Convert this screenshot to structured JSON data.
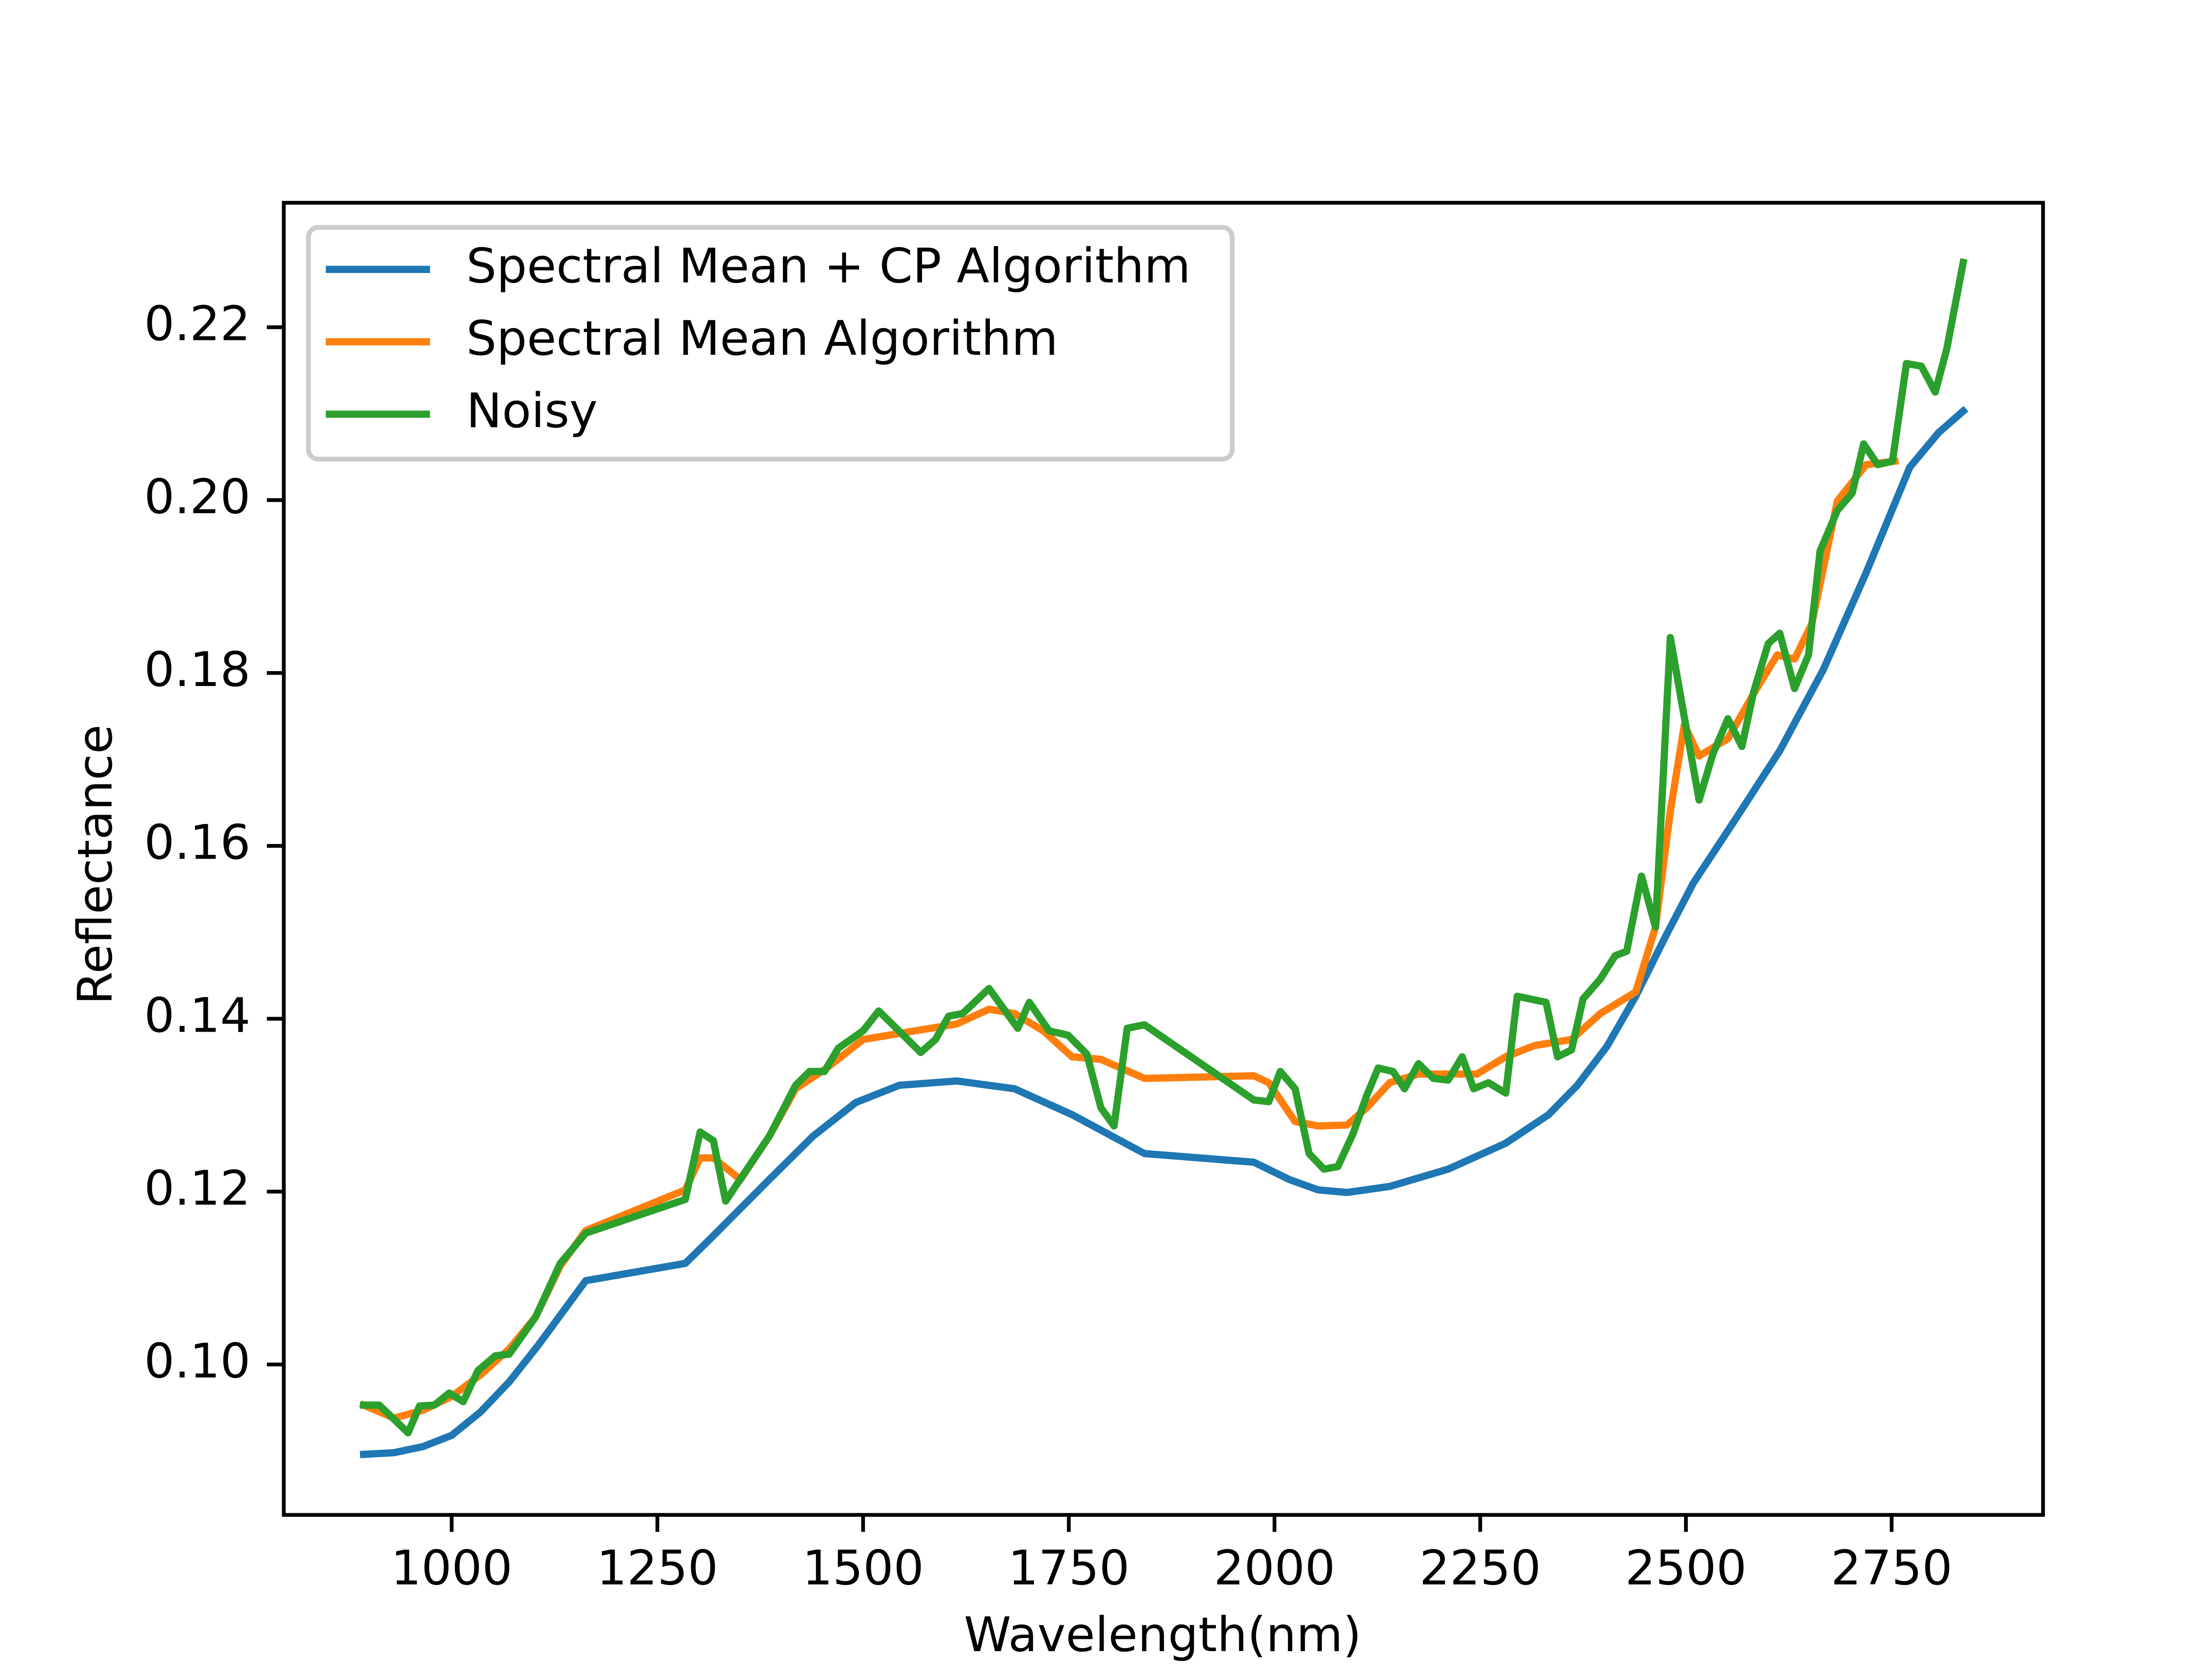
{
  "chart_data": {
    "type": "line",
    "xlabel": "Wavelength(nm)",
    "ylabel": "Reflectance",
    "xlim": [
      796,
      2934
    ],
    "ylim": [
      0.0826,
      0.2344
    ],
    "xticks": [
      1000,
      1250,
      1500,
      1750,
      2000,
      2250,
      2500,
      2750
    ],
    "yticks": [
      {
        "value": 0.1,
        "label": "0.10"
      },
      0.12,
      0.14,
      0.16,
      0.18,
      {
        "value": 0.2,
        "label": "0.20"
      },
      0.22
    ],
    "legend": "upper left",
    "series": [
      {
        "name": "Spectral Mean + CP Algorithm",
        "color": "#1f77b4",
        "x": [
          893,
          930,
          965,
          1000,
          1035,
          1070,
          1105,
          1163,
          1284,
          1316,
          1386,
          1439,
          1491,
          1544,
          1614,
          1684,
          1754,
          1842,
          1975,
          2018,
          2053,
          2088,
          2140,
          2211,
          2281,
          2333,
          2368,
          2404,
          2439,
          2474,
          2509,
          2561,
          2614,
          2667,
          2719,
          2772,
          2807,
          2837
        ],
        "values": [
          0.0896,
          0.0898,
          0.0905,
          0.0918,
          0.0945,
          0.098,
          0.1022,
          0.1097,
          0.1117,
          0.1147,
          0.1214,
          0.1264,
          0.1303,
          0.1323,
          0.1328,
          0.1319,
          0.1289,
          0.1244,
          0.1234,
          0.1214,
          0.1202,
          0.1199,
          0.1206,
          0.1226,
          0.1256,
          0.1289,
          0.1323,
          0.1368,
          0.1426,
          0.1493,
          0.1557,
          0.1632,
          0.171,
          0.1804,
          0.1916,
          0.2038,
          0.2078,
          0.2103
        ]
      },
      {
        "name": "Spectral Mean Algorithm",
        "color": "#ff7f0e",
        "x": [
          893,
          930,
          965,
          1000,
          1035,
          1070,
          1102,
          1132,
          1163,
          1284,
          1302,
          1318,
          1351,
          1386,
          1418,
          1456,
          1500,
          1544,
          1614,
          1653,
          1684,
          1719,
          1754,
          1789,
          1842,
          1975,
          1993,
          2025,
          2053,
          2088,
          2112,
          2140,
          2175,
          2211,
          2246,
          2281,
          2316,
          2361,
          2396,
          2439,
          2463,
          2481,
          2498,
          2516,
          2551,
          2586,
          2611,
          2632,
          2653,
          2684,
          2719,
          2754
        ],
        "values": [
          0.0953,
          0.0938,
          0.0947,
          0.0963,
          0.0988,
          0.1018,
          0.1055,
          0.1114,
          0.1155,
          0.1202,
          0.1239,
          0.1239,
          0.1214,
          0.1264,
          0.1319,
          0.1343,
          0.1376,
          0.1383,
          0.1394,
          0.1411,
          0.1406,
          0.1386,
          0.1356,
          0.1353,
          0.1331,
          0.1334,
          0.1326,
          0.1281,
          0.1276,
          0.1277,
          0.1297,
          0.1326,
          0.1336,
          0.1336,
          0.1336,
          0.1356,
          0.1369,
          0.1376,
          0.1406,
          0.1431,
          0.1506,
          0.164,
          0.174,
          0.1704,
          0.1724,
          0.1782,
          0.1821,
          0.1816,
          0.1857,
          0.1999,
          0.2041,
          0.2045
        ]
      },
      {
        "name": "Noisy",
        "color": "#2ca02c",
        "x": [
          893,
          912,
          947,
          961,
          979,
          997,
          1014,
          1032,
          1053,
          1070,
          1102,
          1132,
          1163,
          1284,
          1302,
          1318,
          1333,
          1354,
          1386,
          1418,
          1435,
          1453,
          1470,
          1500,
          1519,
          1551,
          1570,
          1588,
          1604,
          1621,
          1653,
          1688,
          1702,
          1726,
          1749,
          1772,
          1789,
          1805,
          1821,
          1842,
          1975,
          1993,
          2007,
          2025,
          2042,
          2060,
          2077,
          2095,
          2112,
          2126,
          2144,
          2158,
          2175,
          2193,
          2211,
          2228,
          2242,
          2260,
          2281,
          2295,
          2330,
          2344,
          2361,
          2375,
          2396,
          2414,
          2428,
          2446,
          2463,
          2481,
          2498,
          2516,
          2533,
          2551,
          2568,
          2582,
          2600,
          2614,
          2632,
          2649,
          2663,
          2684,
          2702,
          2716,
          2733,
          2751,
          2768,
          2786,
          2803,
          2817,
          2837
        ],
        "values": [
          0.0953,
          0.0953,
          0.0921,
          0.0952,
          0.0953,
          0.0967,
          0.0957,
          0.0993,
          0.101,
          0.1012,
          0.1055,
          0.1117,
          0.1152,
          0.1191,
          0.1269,
          0.1259,
          0.1189,
          0.1219,
          0.1264,
          0.1323,
          0.1339,
          0.1339,
          0.1366,
          0.1386,
          0.1409,
          0.1379,
          0.1361,
          0.1376,
          0.1403,
          0.1406,
          0.1435,
          0.1389,
          0.1419,
          0.1386,
          0.1381,
          0.1359,
          0.1297,
          0.1276,
          0.1389,
          0.1393,
          0.1306,
          0.1304,
          0.1339,
          0.1319,
          0.1244,
          0.1226,
          0.1229,
          0.1266,
          0.1311,
          0.1343,
          0.1339,
          0.1319,
          0.1348,
          0.1331,
          0.1329,
          0.1356,
          0.1319,
          0.1326,
          0.1314,
          0.1426,
          0.1419,
          0.1356,
          0.1364,
          0.1423,
          0.1446,
          0.1473,
          0.1478,
          0.1565,
          0.1506,
          0.1841,
          0.1749,
          0.1653,
          0.1707,
          0.1747,
          0.1715,
          0.1777,
          0.1834,
          0.1846,
          0.1782,
          0.1821,
          0.1941,
          0.1988,
          0.2008,
          0.2065,
          0.2041,
          0.2045,
          0.2158,
          0.2155,
          0.2125,
          0.2175,
          0.2275
        ]
      }
    ]
  }
}
